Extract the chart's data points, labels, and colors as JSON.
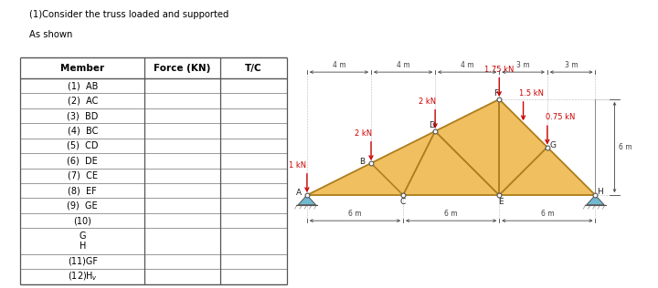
{
  "title_line1": "(1)Consider the truss loaded and supported",
  "title_line2": "As shown",
  "table_headers": [
    "Member",
    "Force (KN)",
    "T/C"
  ],
  "table_rows": [
    "(1)  AB",
    "(2)  AC",
    "(3)  BD",
    "(4)  BC",
    "(5)  CD",
    "(6)  DE",
    "(7)  CE",
    "(8)  EF",
    "(9)  GE",
    "(10)"
  ],
  "bg_color": "#ffffff",
  "truss_fill": "#f0c060",
  "truss_edge": "#b08020",
  "arrow_color": "#cc0000",
  "dim_color": "#444444",
  "support_fill": "#70b8d0",
  "node_fill": "#ffffff",
  "node_edge": "#555555"
}
